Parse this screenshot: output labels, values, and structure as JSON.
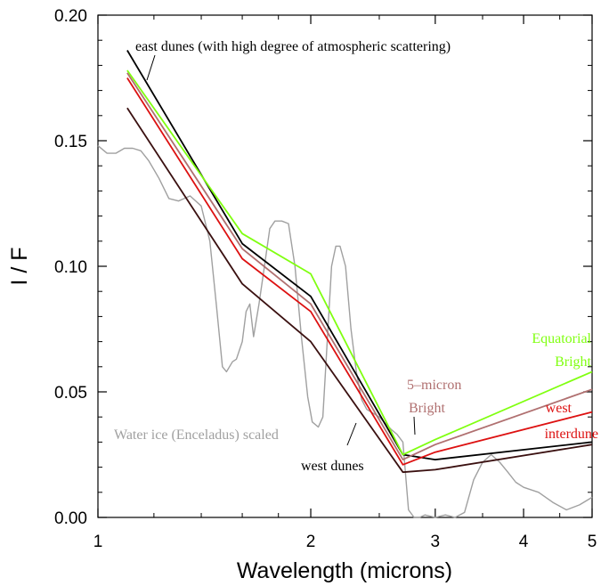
{
  "chart_data": {
    "type": "line",
    "xlabel": "Wavelength (microns)",
    "ylabel": "I / F",
    "xscale": "log",
    "xlim": [
      1.0,
      5.0
    ],
    "ylim": [
      0.0,
      0.2
    ],
    "x_ticks": [
      {
        "value": 1,
        "label": "1"
      },
      {
        "value": 2,
        "label": "2"
      },
      {
        "value": 3,
        "label": "3"
      },
      {
        "value": 4,
        "label": "4"
      },
      {
        "value": 5,
        "label": "5"
      }
    ],
    "y_ticks": [
      {
        "value": 0.0,
        "label": "0.00"
      },
      {
        "value": 0.05,
        "label": "0.05"
      },
      {
        "value": 0.1,
        "label": "0.10"
      },
      {
        "value": 0.15,
        "label": "0.15"
      },
      {
        "value": 0.2,
        "label": "0.20"
      }
    ],
    "grid": false,
    "series": [
      {
        "color": "#a0a0a0",
        "x": [
          1.0,
          1.03,
          1.06,
          1.09,
          1.12,
          1.15,
          1.18,
          1.22,
          1.26,
          1.3,
          1.35,
          1.4,
          1.44,
          1.47,
          1.5,
          1.52,
          1.55,
          1.57,
          1.6,
          1.62,
          1.64,
          1.66,
          1.69,
          1.72,
          1.75,
          1.78,
          1.82,
          1.86,
          1.9,
          1.94,
          1.98,
          2.01,
          2.05,
          2.08,
          2.11,
          2.14,
          2.17,
          2.2,
          2.24,
          2.28,
          2.32,
          2.36,
          2.4,
          2.5,
          2.6,
          2.65,
          2.7,
          2.75,
          2.8,
          2.85,
          2.9,
          3.0,
          3.1,
          3.2,
          3.3,
          3.4,
          3.5,
          3.6,
          3.7,
          3.8,
          3.9,
          4.0,
          4.2,
          4.4,
          4.6,
          4.8,
          5.0
        ],
        "y": [
          0.148,
          0.145,
          0.145,
          0.147,
          0.147,
          0.146,
          0.142,
          0.135,
          0.127,
          0.126,
          0.128,
          0.124,
          0.11,
          0.085,
          0.06,
          0.058,
          0.062,
          0.063,
          0.07,
          0.082,
          0.085,
          0.072,
          0.085,
          0.1,
          0.115,
          0.118,
          0.118,
          0.117,
          0.1,
          0.072,
          0.048,
          0.038,
          0.036,
          0.04,
          0.07,
          0.1,
          0.108,
          0.108,
          0.1,
          0.075,
          0.058,
          0.047,
          0.043,
          0.04,
          0.035,
          0.033,
          0.03,
          0.003,
          0.0,
          0.0,
          0.001,
          0.0,
          0.001,
          0.0,
          0.002,
          0.015,
          0.022,
          0.025,
          0.022,
          0.018,
          0.014,
          0.012,
          0.01,
          0.006,
          0.003,
          0.005,
          0.008
        ]
      },
      {
        "color": "#000000",
        "x": [
          1.1,
          1.6,
          2.0,
          2.7,
          3.0,
          5.0
        ],
        "y": [
          0.186,
          0.109,
          0.088,
          0.025,
          0.023,
          0.03
        ]
      },
      {
        "color": "#80ff10",
        "x": [
          1.1,
          1.6,
          2.0,
          2.7,
          3.0,
          5.0
        ],
        "y": [
          0.178,
          0.113,
          0.097,
          0.025,
          0.031,
          0.058
        ]
      },
      {
        "color": "#b07070",
        "x": [
          1.1,
          1.6,
          2.0,
          2.7,
          3.0,
          5.0
        ],
        "y": [
          0.177,
          0.107,
          0.085,
          0.023,
          0.029,
          0.051
        ]
      },
      {
        "color": "#dd1111",
        "x": [
          1.1,
          1.6,
          2.0,
          2.7,
          3.0,
          5.0
        ],
        "y": [
          0.175,
          0.103,
          0.082,
          0.021,
          0.026,
          0.042
        ]
      },
      {
        "color": "#3a1010",
        "x": [
          1.1,
          1.6,
          2.0,
          2.7,
          3.0,
          5.0
        ],
        "y": [
          0.163,
          0.093,
          0.07,
          0.018,
          0.019,
          0.029
        ]
      }
    ],
    "annotations": [
      {
        "text": "east dunes (with high degree of atmospheric scattering)",
        "color": "#000000"
      },
      {
        "text": "Water ice (Enceladus) scaled",
        "color": "#a0a0a0"
      },
      {
        "text": "west dunes",
        "color": "#000000"
      },
      {
        "text": "5–micron",
        "color": "#b07070"
      },
      {
        "text": "Bright",
        "color": "#b07070"
      },
      {
        "text": "Equatorial",
        "color": "#80ff10"
      },
      {
        "text": "Bright",
        "color": "#80ff10"
      },
      {
        "text": "west",
        "color": "#dd1111"
      },
      {
        "text": "interdune",
        "color": "#dd1111"
      }
    ]
  }
}
